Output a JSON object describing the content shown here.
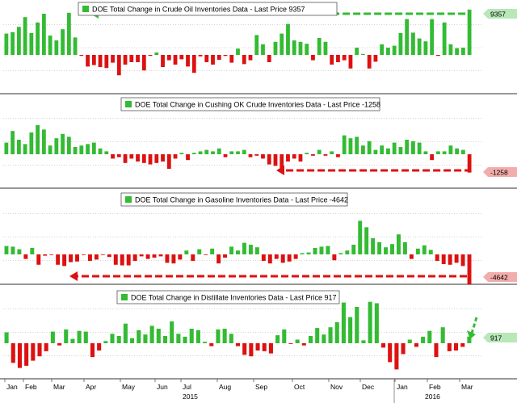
{
  "colors": {
    "positive": "#33bb33",
    "negative": "#dd1111",
    "grid": "#aaaaaa",
    "divider": "#777777",
    "legend_swatch": "#33bb33"
  },
  "x_axis": {
    "months": [
      "Jan",
      "Feb",
      "Mar",
      "Apr",
      "May",
      "Jun",
      "Jul",
      "Aug",
      "Sep",
      "Oct",
      "Nov",
      "Dec",
      "Jan",
      "Feb",
      "Mar"
    ],
    "years": [
      "2015",
      "2016"
    ]
  },
  "chart_data": [
    {
      "type": "bar",
      "title": "DOE Total Change in Crude Oil Inventories Data - Last Price 9357",
      "last_value_label": "9357",
      "arrow": {
        "color": "green",
        "direction": "left",
        "style": "dashed"
      },
      "values": [
        4.4,
        4.7,
        5.8,
        7.8,
        4.5,
        6.7,
        8.5,
        4.0,
        3.0,
        5.3,
        8.7,
        3.6,
        -0.2,
        -2.4,
        -2.1,
        -2.5,
        -2.7,
        -1.6,
        -4.2,
        -2.0,
        -1.5,
        -1.5,
        -3.2,
        -0.2,
        0.5,
        -2.5,
        -1.1,
        -2.0,
        -0.9,
        -2.4,
        -3.7,
        -0.3,
        -1.5,
        -2.0,
        -1.0,
        -0.2,
        -1.6,
        1.3,
        -1.9,
        -1.1,
        4.1,
        2.2,
        -1.5,
        2.7,
        4.4,
        6.4,
        3.0,
        2.7,
        2.3,
        -1.1,
        3.5,
        2.7,
        -2.0,
        -1.5,
        -1.1,
        -2.8,
        1.5,
        0.2,
        -2.8,
        -1.4,
        2.2,
        1.5,
        1.9,
        4.5,
        7.4,
        4.6,
        3.4,
        2.8,
        7.4,
        -0.2,
        6.7,
        2.2,
        1.4,
        1.5,
        9.357
      ]
    },
    {
      "type": "bar",
      "title": "DOE Total Change in Cushing OK Crude Inventories Data - Last Price -1258",
      "last_value_label": "-1258",
      "arrow": {
        "color": "red",
        "direction": "left",
        "style": "dashed"
      },
      "values": [
        0.8,
        1.6,
        1.0,
        0.7,
        1.5,
        2.0,
        1.7,
        0.6,
        1.1,
        1.4,
        1.2,
        0.5,
        0.6,
        0.7,
        0.8,
        0.4,
        0.2,
        -0.3,
        -0.2,
        -0.6,
        -0.3,
        -0.5,
        -0.6,
        -0.7,
        -0.6,
        -0.5,
        -1.0,
        -0.3,
        0.1,
        -0.4,
        0.1,
        0.2,
        0.3,
        0.2,
        0.4,
        -0.2,
        0.2,
        0.2,
        0.3,
        -0.2,
        -0.1,
        -0.3,
        -0.7,
        -0.8,
        -1.1,
        -0.5,
        -0.3,
        -0.5,
        0.1,
        -0.1,
        0.3,
        -0.1,
        0.2,
        -0.2,
        1.3,
        1.1,
        1.2,
        0.6,
        0.9,
        0.3,
        0.6,
        0.4,
        0.8,
        0.5,
        1.0,
        0.9,
        0.8,
        0.2,
        -0.4,
        0.2,
        0.2,
        0.6,
        0.4,
        0.3,
        -1.258
      ]
    },
    {
      "type": "bar",
      "title": "DOE Total Change in Gasoline Inventories Data - Last Price -4642",
      "last_value_label": "-4642",
      "arrow": {
        "color": "red",
        "direction": "left",
        "style": "dashed"
      },
      "values": [
        1.3,
        1.2,
        0.8,
        -0.7,
        1.0,
        -1.6,
        -0.2,
        -0.1,
        -1.6,
        -1.8,
        -1.2,
        -1.1,
        -0.1,
        -1.0,
        -0.8,
        -0.1,
        -0.4,
        -1.6,
        -1.7,
        -1.7,
        -1.0,
        -0.3,
        -0.7,
        -0.5,
        -0.3,
        -1.3,
        -1.4,
        -0.8,
        0.6,
        -1.0,
        0.8,
        -0.1,
        0.9,
        -1.4,
        -0.5,
        1.2,
        0.6,
        1.8,
        1.5,
        1.1,
        -1.0,
        -1.4,
        -0.7,
        -1.3,
        -1.1,
        -0.7,
        0.2,
        0.3,
        1.0,
        1.2,
        1.3,
        -0.9,
        0.2,
        0.6,
        1.5,
        5.2,
        4.2,
        2.5,
        1.9,
        1.1,
        1.6,
        3.1,
        1.9,
        -0.7,
        0.9,
        1.4,
        0.7,
        -1.0,
        -1.5,
        -1.6,
        -1.3,
        -1.8,
        -4.642
      ]
    },
    {
      "type": "bar",
      "title": "DOE Total Change in Distillate Inventories Data - Last Price 917",
      "last_value_label": "917",
      "arrow": {
        "color": "green",
        "direction": "down",
        "style": "dashed"
      },
      "values": [
        1.5,
        -2.7,
        -3.4,
        -3.1,
        -2.4,
        -1.8,
        -1.1,
        1.6,
        -0.3,
        1.9,
        0.6,
        1.7,
        1.6,
        -1.9,
        -1.0,
        0.3,
        1.3,
        1.0,
        2.7,
        0.7,
        1.8,
        1.2,
        2.4,
        2.0,
        1.0,
        3.0,
        1.3,
        0.9,
        2.0,
        1.8,
        0.2,
        -0.4,
        1.9,
        2.0,
        1.3,
        -0.4,
        -1.6,
        -1.8,
        -1.0,
        -1.1,
        -1.4,
        1.1,
        1.9,
        -0.1,
        0.5,
        -0.3,
        1.0,
        2.1,
        1.2,
        2.2,
        2.9,
        5.6,
        3.6,
        5.0,
        0.4,
        5.7,
        5.5,
        -0.6,
        -2.6,
        -3.6,
        -1.5,
        0.5,
        -0.5,
        0.9,
        1.7,
        -1.9,
        2.2,
        -1.1,
        -1.0,
        -0.5,
        0.917
      ]
    }
  ]
}
